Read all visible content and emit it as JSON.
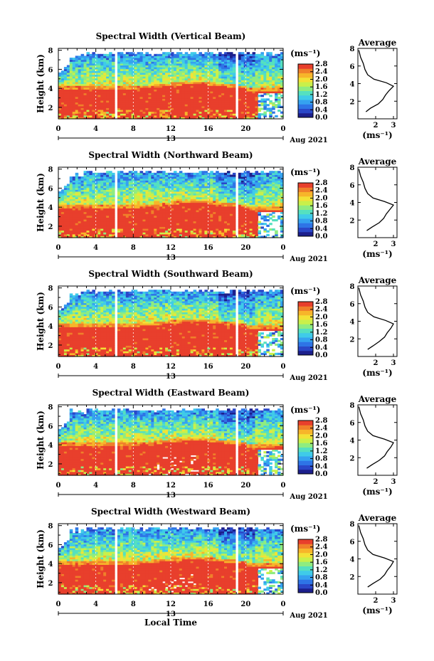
{
  "figure": {
    "x_axis_title": "Local Time",
    "colormap": [
      "#1c1f8c",
      "#2a47c8",
      "#2e74e6",
      "#35a2f0",
      "#3fcbe9",
      "#55e0c0",
      "#8fec80",
      "#c9f04a",
      "#f3e136",
      "#f7b52a",
      "#f0802a",
      "#e83f2c"
    ],
    "grid_color": "#ffffff",
    "profile_line_color": "#000000"
  },
  "chart_data": [
    {
      "type": "heatmap",
      "title": "Spectral Width (Vertical Beam)",
      "ylabel": "Height (km)",
      "xlim": [
        0,
        24
      ],
      "x_ticks": [
        "0",
        "4",
        "8",
        "12",
        "16",
        "20",
        "0"
      ],
      "x_tick_values": [
        0,
        4,
        8,
        12,
        16,
        20,
        24
      ],
      "ylim": [
        0.8,
        8.2
      ],
      "y_ticks": [
        "2",
        "4",
        "6",
        "8"
      ],
      "y_tick_values": [
        2,
        4,
        6,
        8
      ],
      "date_label": "13",
      "month_year_label": "Aug 2021",
      "colorbar": {
        "unit": "(ms⁻¹)",
        "range": [
          0.0,
          2.8
        ],
        "ticks": [
          "0.0",
          "0.4",
          "0.8",
          "1.2",
          "1.6",
          "2.0",
          "2.4",
          "2.8"
        ],
        "tick_values": [
          0.0,
          0.4,
          0.8,
          1.2,
          1.6,
          2.0,
          2.4,
          2.8
        ]
      },
      "gaps": [
        [
          6.1,
          6.3
        ],
        [
          19.0,
          19.3
        ]
      ],
      "average_profile": {
        "title": "Average",
        "xlabel": "(ms⁻¹)",
        "x_ticks": [
          "2",
          "3"
        ],
        "x_tick_values": [
          2,
          3
        ],
        "xlim": [
          1.0,
          3.2
        ],
        "ylim": [
          0,
          8
        ],
        "y_ticks": [
          "2",
          "4",
          "6",
          "8"
        ],
        "y_tick_values": [
          2,
          4,
          6,
          8
        ],
        "profile": [
          [
            1.45,
            0.8
          ],
          [
            1.7,
            1.2
          ],
          [
            2.15,
            1.7
          ],
          [
            2.4,
            2.2
          ],
          [
            2.55,
            2.7
          ],
          [
            2.75,
            3.2
          ],
          [
            3.0,
            3.7
          ],
          [
            2.6,
            4.1
          ],
          [
            1.9,
            4.5
          ],
          [
            1.55,
            5.0
          ],
          [
            1.4,
            5.6
          ],
          [
            1.3,
            6.3
          ],
          [
            1.15,
            7.0
          ],
          [
            1.05,
            7.8
          ]
        ]
      }
    },
    {
      "type": "heatmap",
      "title": "Spectral Width (Northward Beam)",
      "ylabel": "Height (km)",
      "xlim": [
        0,
        24
      ],
      "x_ticks": [
        "0",
        "4",
        "8",
        "12",
        "16",
        "20",
        "0"
      ],
      "x_tick_values": [
        0,
        4,
        8,
        12,
        16,
        20,
        24
      ],
      "ylim": [
        0.8,
        8.2
      ],
      "y_ticks": [
        "2",
        "4",
        "6",
        "8"
      ],
      "y_tick_values": [
        2,
        4,
        6,
        8
      ],
      "date_label": "13",
      "month_year_label": "Aug 2021",
      "colorbar": {
        "unit": "(ms⁻¹)",
        "range": [
          0.0,
          2.8
        ],
        "ticks": [
          "0.0",
          "0.4",
          "0.8",
          "1.2",
          "1.6",
          "2.0",
          "2.4",
          "2.8"
        ],
        "tick_values": [
          0.0,
          0.4,
          0.8,
          1.2,
          1.6,
          2.0,
          2.4,
          2.8
        ]
      },
      "gaps": [
        [
          6.1,
          6.3
        ],
        [
          19.0,
          19.3
        ]
      ],
      "average_profile": {
        "title": "Average",
        "xlabel": "(ms⁻¹)",
        "x_ticks": [
          "2",
          "3"
        ],
        "x_tick_values": [
          2,
          3
        ],
        "xlim": [
          1.0,
          3.2
        ],
        "ylim": [
          0,
          8
        ],
        "y_ticks": [
          "2",
          "4",
          "6",
          "8"
        ],
        "y_tick_values": [
          2,
          4,
          6,
          8
        ],
        "profile": [
          [
            1.5,
            0.8
          ],
          [
            1.8,
            1.2
          ],
          [
            2.2,
            1.7
          ],
          [
            2.45,
            2.2
          ],
          [
            2.6,
            2.7
          ],
          [
            2.8,
            3.2
          ],
          [
            3.0,
            3.7
          ],
          [
            2.5,
            4.1
          ],
          [
            1.85,
            4.5
          ],
          [
            1.55,
            5.0
          ],
          [
            1.4,
            5.6
          ],
          [
            1.3,
            6.3
          ],
          [
            1.15,
            7.0
          ],
          [
            1.05,
            7.8
          ]
        ]
      }
    },
    {
      "type": "heatmap",
      "title": "Spectral Width (Southward Beam)",
      "ylabel": "Height (km)",
      "xlim": [
        0,
        24
      ],
      "x_ticks": [
        "0",
        "4",
        "8",
        "12",
        "16",
        "20",
        "0"
      ],
      "x_tick_values": [
        0,
        4,
        8,
        12,
        16,
        20,
        24
      ],
      "ylim": [
        0.8,
        8.2
      ],
      "y_ticks": [
        "2",
        "4",
        "6",
        "8"
      ],
      "y_tick_values": [
        2,
        4,
        6,
        8
      ],
      "date_label": "13",
      "month_year_label": "Aug 2021",
      "colorbar": {
        "unit": "(ms⁻¹)",
        "range": [
          0.0,
          2.8
        ],
        "ticks": [
          "0.0",
          "0.4",
          "0.8",
          "1.2",
          "1.6",
          "2.0",
          "2.4",
          "2.8"
        ],
        "tick_values": [
          0.0,
          0.4,
          0.8,
          1.2,
          1.6,
          2.0,
          2.4,
          2.8
        ]
      },
      "gaps": [
        [
          6.1,
          6.3
        ],
        [
          19.0,
          19.3
        ]
      ],
      "average_profile": {
        "title": "Average",
        "xlabel": "(ms⁻¹)",
        "x_ticks": [
          "2",
          "3"
        ],
        "x_tick_values": [
          2,
          3
        ],
        "xlim": [
          1.0,
          3.2
        ],
        "ylim": [
          0,
          8
        ],
        "y_ticks": [
          "2",
          "4",
          "6",
          "8"
        ],
        "y_tick_values": [
          2,
          4,
          6,
          8
        ],
        "profile": [
          [
            1.55,
            0.8
          ],
          [
            1.85,
            1.2
          ],
          [
            2.2,
            1.7
          ],
          [
            2.5,
            2.2
          ],
          [
            2.65,
            2.7
          ],
          [
            2.85,
            3.2
          ],
          [
            3.0,
            3.7
          ],
          [
            2.55,
            4.1
          ],
          [
            1.9,
            4.5
          ],
          [
            1.55,
            5.0
          ],
          [
            1.4,
            5.6
          ],
          [
            1.3,
            6.3
          ],
          [
            1.15,
            7.0
          ],
          [
            1.05,
            7.8
          ]
        ]
      }
    },
    {
      "type": "heatmap",
      "title": "Spectral Width (Eastward Beam)",
      "ylabel": "Height (km)",
      "xlim": [
        0,
        24
      ],
      "x_ticks": [
        "0",
        "4",
        "8",
        "12",
        "16",
        "20",
        "0"
      ],
      "x_tick_values": [
        0,
        4,
        8,
        12,
        16,
        20,
        24
      ],
      "ylim": [
        0.8,
        8.2
      ],
      "y_ticks": [
        "2",
        "4",
        "6",
        "8"
      ],
      "y_tick_values": [
        2,
        4,
        6,
        8
      ],
      "date_label": "13",
      "month_year_label": "Aug 2021",
      "colorbar": {
        "unit": "(ms⁻¹)",
        "range": [
          0.0,
          2.8
        ],
        "ticks": [
          "0.0",
          "0.4",
          "0.8",
          "1.2",
          "1.6",
          "2.0",
          "2.4",
          "2.8"
        ],
        "tick_values": [
          0.0,
          0.4,
          0.8,
          1.2,
          1.6,
          2.0,
          2.4,
          2.8
        ]
      },
      "gaps": [
        [
          6.1,
          6.3
        ],
        [
          19.0,
          19.3
        ]
      ],
      "average_profile": {
        "title": "Average",
        "xlabel": "(ms⁻¹)",
        "x_ticks": [
          "2",
          "3"
        ],
        "x_tick_values": [
          2,
          3
        ],
        "xlim": [
          1.0,
          3.2
        ],
        "ylim": [
          0,
          8
        ],
        "y_ticks": [
          "2",
          "4",
          "6",
          "8"
        ],
        "y_tick_values": [
          2,
          4,
          6,
          8
        ],
        "profile": [
          [
            1.5,
            0.8
          ],
          [
            1.8,
            1.2
          ],
          [
            2.2,
            1.7
          ],
          [
            2.5,
            2.2
          ],
          [
            2.65,
            2.7
          ],
          [
            2.85,
            3.2
          ],
          [
            3.0,
            3.7
          ],
          [
            2.5,
            4.1
          ],
          [
            1.85,
            4.5
          ],
          [
            1.55,
            5.0
          ],
          [
            1.4,
            5.6
          ],
          [
            1.3,
            6.3
          ],
          [
            1.15,
            7.0
          ],
          [
            1.05,
            7.8
          ]
        ]
      }
    },
    {
      "type": "heatmap",
      "title": "Spectral Width (Westward Beam)",
      "ylabel": "Height (km)",
      "xlim": [
        0,
        24
      ],
      "x_ticks": [
        "0",
        "4",
        "8",
        "12",
        "16",
        "20",
        "0"
      ],
      "x_tick_values": [
        0,
        4,
        8,
        12,
        16,
        20,
        24
      ],
      "ylim": [
        0.8,
        8.2
      ],
      "y_ticks": [
        "2",
        "4",
        "6",
        "8"
      ],
      "y_tick_values": [
        2,
        4,
        6,
        8
      ],
      "date_label": "13",
      "month_year_label": "Aug 2021",
      "colorbar": {
        "unit": "(ms⁻¹)",
        "range": [
          0.0,
          2.8
        ],
        "ticks": [
          "0.0",
          "0.4",
          "0.8",
          "1.2",
          "1.6",
          "2.0",
          "2.4",
          "2.8"
        ],
        "tick_values": [
          0.0,
          0.4,
          0.8,
          1.2,
          1.6,
          2.0,
          2.4,
          2.8
        ]
      },
      "gaps": [
        [
          6.1,
          6.3
        ],
        [
          19.0,
          19.3
        ]
      ],
      "average_profile": {
        "title": "Average",
        "xlabel": "(ms⁻¹)",
        "x_ticks": [
          "2",
          "3"
        ],
        "x_tick_values": [
          2,
          3
        ],
        "xlim": [
          1.0,
          3.2
        ],
        "ylim": [
          0,
          8
        ],
        "y_ticks": [
          "2",
          "4",
          "6",
          "8"
        ],
        "y_tick_values": [
          2,
          4,
          6,
          8
        ],
        "profile": [
          [
            1.55,
            0.8
          ],
          [
            1.85,
            1.2
          ],
          [
            2.25,
            1.7
          ],
          [
            2.5,
            2.2
          ],
          [
            2.65,
            2.7
          ],
          [
            2.85,
            3.2
          ],
          [
            3.0,
            3.7
          ],
          [
            2.5,
            4.1
          ],
          [
            1.85,
            4.5
          ],
          [
            1.55,
            5.0
          ],
          [
            1.4,
            5.6
          ],
          [
            1.3,
            6.3
          ],
          [
            1.15,
            7.0
          ],
          [
            1.05,
            7.8
          ]
        ]
      }
    }
  ]
}
